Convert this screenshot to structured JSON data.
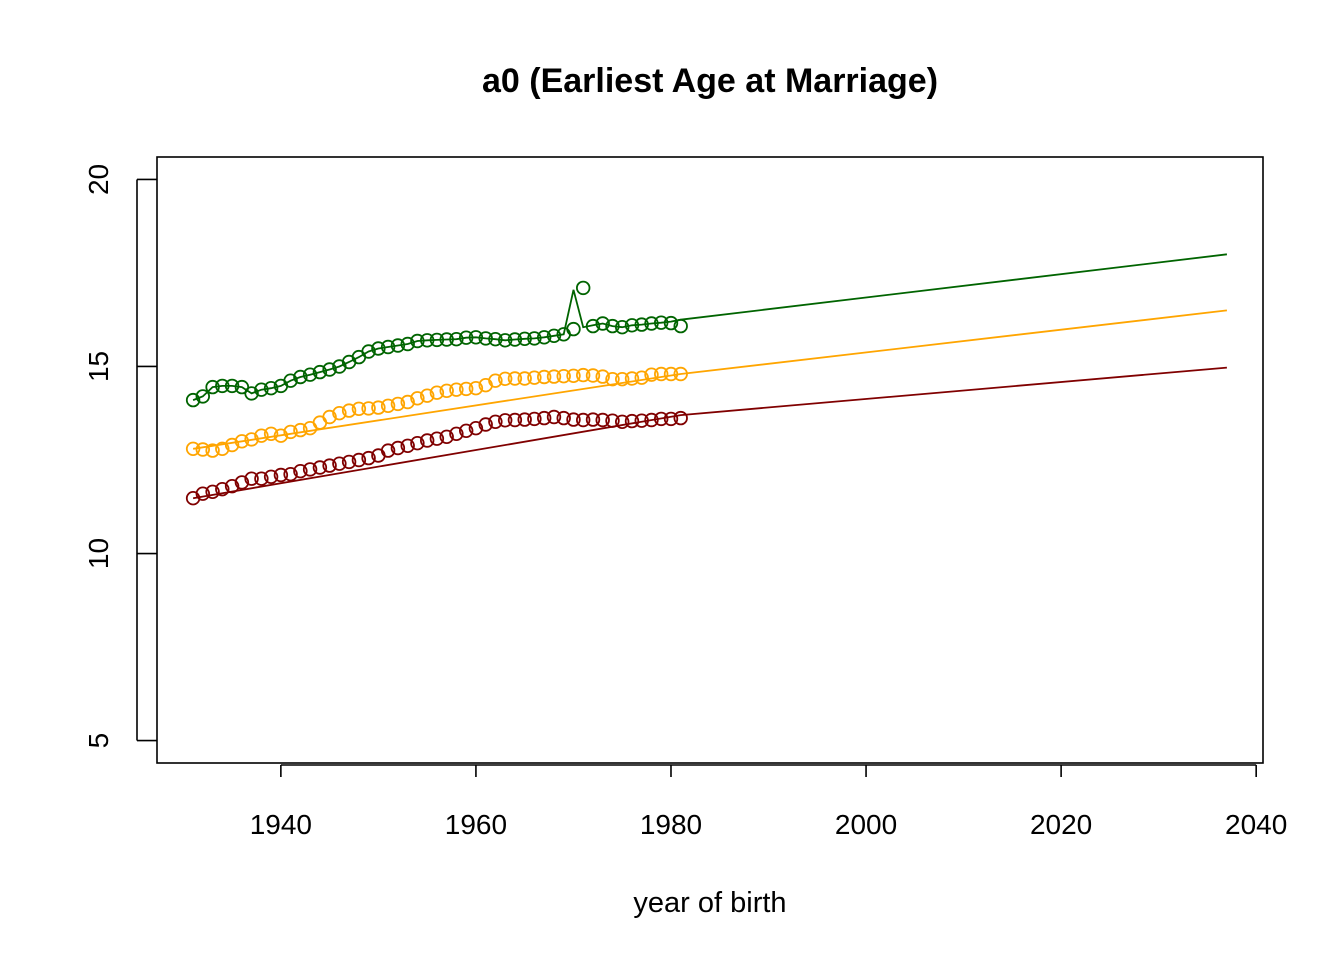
{
  "chart_data": {
    "type": "line",
    "title": "a0 (Earliest Age at Marriage)",
    "xlabel": "year of birth",
    "ylabel": "",
    "xlim": [
      1927.3,
      2040.7
    ],
    "ylim": [
      4.4,
      20.6
    ],
    "x_ticks": [
      1940,
      1960,
      1980,
      2000,
      2020,
      2040
    ],
    "y_ticks": [
      5,
      10,
      15,
      20
    ],
    "x_tick_labels": [
      "1940",
      "1960",
      "1980",
      "2000",
      "2020",
      "2040"
    ],
    "y_tick_labels": [
      "5",
      "10",
      "15",
      "20"
    ],
    "grid": false,
    "legend": "none",
    "series": [
      {
        "color": "#006400",
        "points": {
          "x": [
            1931,
            1932,
            1933,
            1934,
            1935,
            1936,
            1937,
            1938,
            1939,
            1940,
            1941,
            1942,
            1943,
            1944,
            1945,
            1946,
            1947,
            1948,
            1949,
            1950,
            1951,
            1952,
            1953,
            1954,
            1955,
            1956,
            1957,
            1958,
            1959,
            1960,
            1961,
            1962,
            1963,
            1964,
            1965,
            1966,
            1967,
            1968,
            1969,
            1970,
            1971,
            1972,
            1973,
            1974,
            1975,
            1976,
            1977,
            1978,
            1979,
            1980,
            1981
          ],
          "y": [
            14.1,
            14.2,
            14.45,
            14.48,
            14.48,
            14.45,
            14.28,
            14.38,
            14.42,
            14.48,
            14.62,
            14.72,
            14.78,
            14.85,
            14.92,
            15.0,
            15.12,
            15.25,
            15.4,
            15.48,
            15.52,
            15.56,
            15.6,
            15.68,
            15.7,
            15.71,
            15.72,
            15.73,
            15.77,
            15.78,
            15.75,
            15.73,
            15.7,
            15.72,
            15.74,
            15.75,
            15.78,
            15.82,
            15.86,
            16.0,
            17.1,
            16.08,
            16.15,
            16.08,
            16.05,
            16.1,
            16.12,
            16.15,
            16.17,
            16.16,
            16.08
          ]
        },
        "trend": {
          "x": [
            1931,
            1932,
            1933,
            1934,
            1935,
            1936,
            1937,
            1938,
            1939,
            1940,
            1941,
            1942,
            1943,
            1944,
            1945,
            1946,
            1947,
            1948,
            1949,
            1950,
            1951,
            1952,
            1953,
            1954,
            1955,
            1956,
            1957,
            1958,
            1959,
            1960,
            1961,
            1962,
            1963,
            1964,
            1965,
            1966,
            1967,
            1968,
            1969,
            1970,
            1971,
            1972,
            1973,
            1974,
            1975,
            1976,
            1977,
            1978,
            1979,
            1980,
            1981,
            2037
          ],
          "y": [
            14.1,
            14.2,
            14.45,
            14.48,
            14.48,
            14.45,
            14.28,
            14.38,
            14.42,
            14.48,
            14.62,
            14.72,
            14.78,
            14.85,
            14.92,
            15.0,
            15.12,
            15.25,
            15.4,
            15.48,
            15.52,
            15.56,
            15.6,
            15.68,
            15.7,
            15.71,
            15.72,
            15.73,
            15.77,
            15.78,
            15.75,
            15.73,
            15.7,
            15.72,
            15.74,
            15.75,
            15.78,
            15.82,
            15.86,
            17.05,
            16.05,
            16.1,
            16.15,
            16.08,
            16.05,
            16.1,
            16.12,
            16.15,
            16.17,
            16.2,
            16.25,
            18.0
          ]
        }
      },
      {
        "color": "#FFA500",
        "points": {
          "x": [
            1931,
            1932,
            1933,
            1934,
            1935,
            1936,
            1937,
            1938,
            1939,
            1940,
            1941,
            1942,
            1943,
            1944,
            1945,
            1946,
            1947,
            1948,
            1949,
            1950,
            1951,
            1952,
            1953,
            1954,
            1955,
            1956,
            1957,
            1958,
            1959,
            1960,
            1961,
            1962,
            1963,
            1964,
            1965,
            1966,
            1967,
            1968,
            1969,
            1970,
            1971,
            1972,
            1973,
            1974,
            1975,
            1976,
            1977,
            1978,
            1979,
            1980,
            1981
          ],
          "y": [
            12.8,
            12.78,
            12.75,
            12.8,
            12.9,
            13.0,
            13.05,
            13.15,
            13.2,
            13.15,
            13.25,
            13.3,
            13.35,
            13.5,
            13.65,
            13.75,
            13.82,
            13.87,
            13.88,
            13.9,
            13.95,
            14.0,
            14.05,
            14.15,
            14.22,
            14.3,
            14.35,
            14.38,
            14.4,
            14.42,
            14.5,
            14.62,
            14.67,
            14.68,
            14.68,
            14.7,
            14.72,
            14.73,
            14.74,
            14.75,
            14.77,
            14.76,
            14.73,
            14.66,
            14.66,
            14.68,
            14.7,
            14.78,
            14.8,
            14.8,
            14.8
          ]
        },
        "trend": {
          "x": [
            1931,
            1981,
            2037
          ],
          "y": [
            12.8,
            14.8,
            16.5
          ]
        }
      },
      {
        "color": "#800000",
        "points": {
          "x": [
            1931,
            1932,
            1933,
            1934,
            1935,
            1936,
            1937,
            1938,
            1939,
            1940,
            1941,
            1942,
            1943,
            1944,
            1945,
            1946,
            1947,
            1948,
            1949,
            1950,
            1951,
            1952,
            1953,
            1954,
            1955,
            1956,
            1957,
            1958,
            1959,
            1960,
            1961,
            1962,
            1963,
            1964,
            1965,
            1966,
            1967,
            1968,
            1969,
            1970,
            1971,
            1972,
            1973,
            1974,
            1975,
            1976,
            1977,
            1978,
            1979,
            1980,
            1981
          ],
          "y": [
            11.48,
            11.6,
            11.65,
            11.72,
            11.8,
            11.9,
            12.0,
            12.0,
            12.05,
            12.1,
            12.12,
            12.2,
            12.25,
            12.3,
            12.35,
            12.4,
            12.45,
            12.5,
            12.55,
            12.62,
            12.75,
            12.82,
            12.88,
            12.95,
            13.02,
            13.07,
            13.12,
            13.2,
            13.28,
            13.35,
            13.45,
            13.52,
            13.56,
            13.57,
            13.58,
            13.6,
            13.62,
            13.65,
            13.62,
            13.58,
            13.57,
            13.58,
            13.57,
            13.55,
            13.52,
            13.54,
            13.55,
            13.57,
            13.6,
            13.6,
            13.62
          ]
        },
        "trend": {
          "x": [
            1931,
            1981,
            2037
          ],
          "y": [
            11.48,
            13.7,
            14.97
          ]
        }
      }
    ]
  }
}
